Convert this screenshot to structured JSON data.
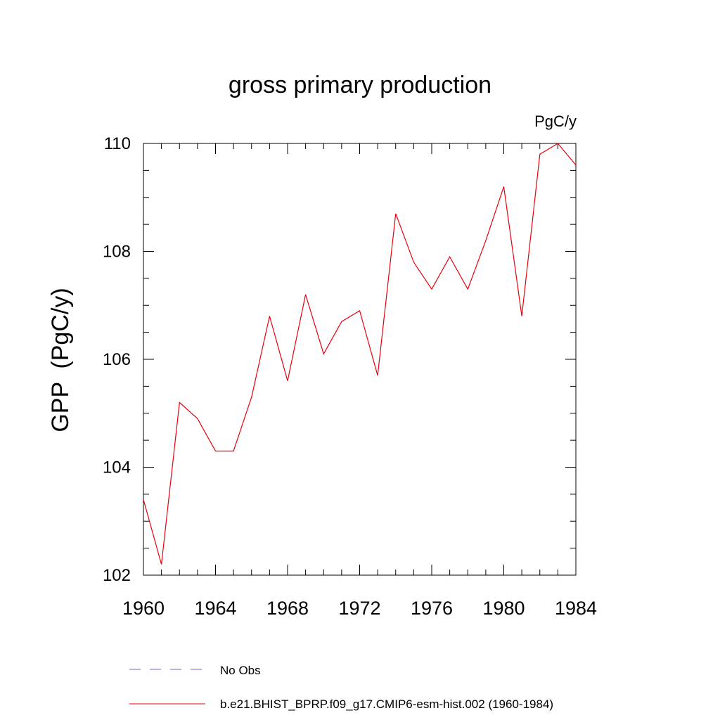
{
  "chart_data": {
    "type": "line",
    "title": "gross primary production",
    "units_label": "PgC/y",
    "ylabel": "GPP  (PgC/y)",
    "xlabel": "",
    "xlim": [
      1960,
      1984
    ],
    "ylim": [
      102,
      110
    ],
    "x_ticks": [
      1960,
      1964,
      1968,
      1972,
      1976,
      1980,
      1984
    ],
    "y_ticks": [
      102,
      104,
      106,
      108,
      110
    ],
    "grid": false,
    "legend_position": "bottom",
    "x": [
      1960,
      1961,
      1962,
      1963,
      1964,
      1965,
      1966,
      1967,
      1968,
      1969,
      1970,
      1971,
      1972,
      1973,
      1974,
      1975,
      1976,
      1977,
      1978,
      1979,
      1980,
      1981,
      1982,
      1983,
      1984
    ],
    "series": [
      {
        "name": "b.e21.BHIST_BPRP.f09_g17.CMIP6-esm-hist.002 (1960-1984)",
        "color": "#e8000b",
        "style": "solid",
        "values": [
          103.4,
          102.2,
          105.2,
          104.9,
          104.3,
          104.3,
          105.3,
          106.8,
          105.6,
          107.2,
          106.1,
          106.7,
          106.9,
          105.7,
          108.7,
          107.8,
          107.3,
          107.9,
          107.3,
          108.2,
          109.2,
          106.8,
          109.8,
          110.0,
          109.6
        ]
      }
    ],
    "legend": [
      {
        "label": "No Obs",
        "color": "#6a6ad0",
        "style": "dashed"
      },
      {
        "label": "b.e21.BHIST_BPRP.f09_g17.CMIP6-esm-hist.002 (1960-1984)",
        "color": "#e8000b",
        "style": "solid"
      }
    ]
  }
}
